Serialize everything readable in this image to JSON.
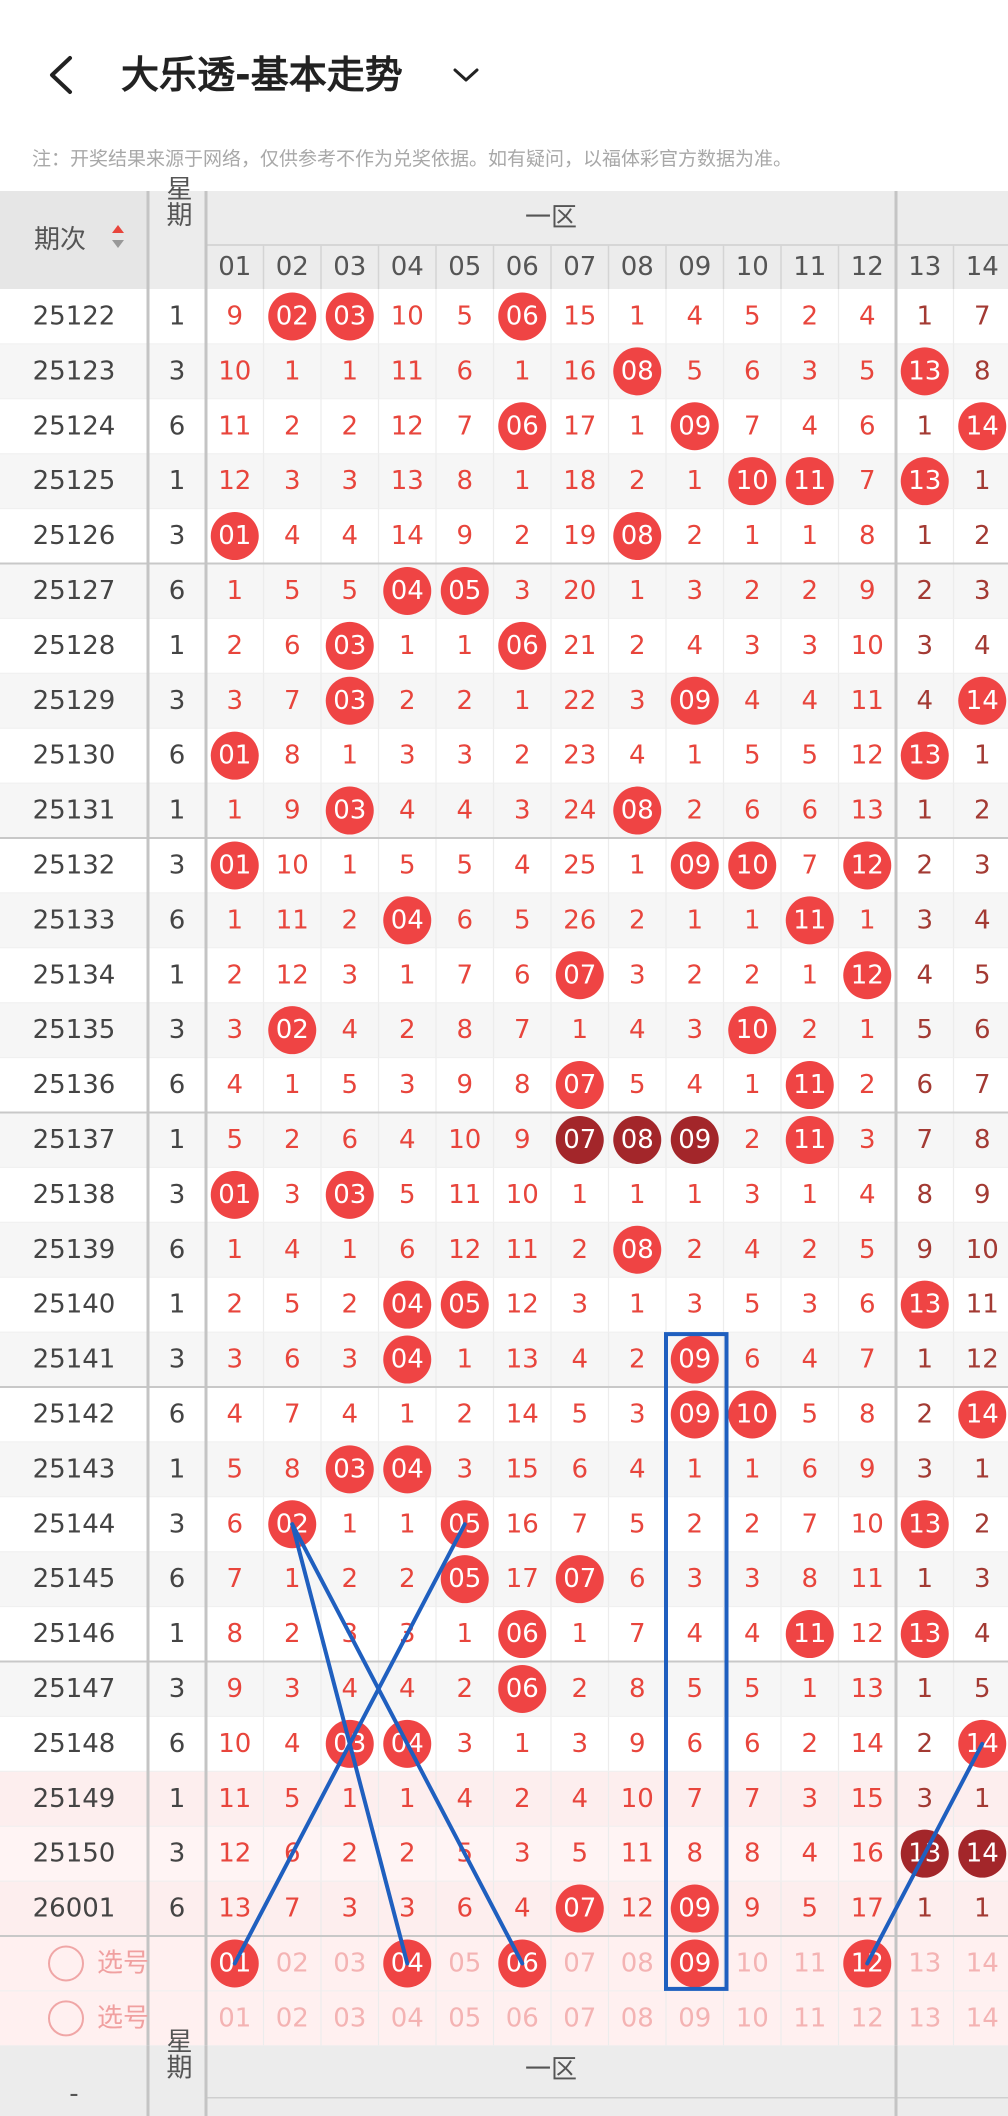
{
  "header": {
    "title": "大乐透-基本走势",
    "note": "注：开奖结果来源于网络，仅供参考不作为兑奖依据。如有疑问，以福体彩官方数据为准。"
  },
  "table": {
    "columns": {
      "issue": "期次",
      "weekday": "星期",
      "zone": "一区",
      "numbers": [
        "01",
        "02",
        "03",
        "04",
        "05",
        "06",
        "07",
        "08",
        "09",
        "10",
        "11",
        "12",
        "13",
        "14"
      ]
    },
    "rows": [
      {
        "issue": "25122",
        "weekday": "1",
        "cells": [
          "9",
          {
            "text": "02",
            "mark": "hit"
          },
          {
            "text": "03",
            "mark": "hit"
          },
          "10",
          "5",
          {
            "text": "06",
            "mark": "hit"
          },
          "15",
          "1",
          "4",
          "5",
          "2",
          "4",
          "1",
          "7"
        ]
      },
      {
        "issue": "25123",
        "weekday": "3",
        "cells": [
          "10",
          "1",
          "1",
          "11",
          "6",
          "1",
          "16",
          {
            "text": "08",
            "mark": "hit"
          },
          "5",
          "6",
          "3",
          "5",
          {
            "text": "13",
            "mark": "hit"
          },
          "8"
        ]
      },
      {
        "issue": "25124",
        "weekday": "6",
        "cells": [
          "11",
          "2",
          "2",
          "12",
          "7",
          {
            "text": "06",
            "mark": "hit"
          },
          "17",
          "1",
          {
            "text": "09",
            "mark": "hit"
          },
          "7",
          "4",
          "6",
          "1",
          {
            "text": "14",
            "mark": "hit"
          }
        ]
      },
      {
        "issue": "25125",
        "weekday": "1",
        "cells": [
          "12",
          "3",
          "3",
          "13",
          "8",
          "1",
          "18",
          "2",
          "1",
          {
            "text": "10",
            "mark": "hit"
          },
          {
            "text": "11",
            "mark": "hit"
          },
          "7",
          {
            "text": "13",
            "mark": "hit"
          },
          "1"
        ]
      },
      {
        "issue": "25126",
        "weekday": "3",
        "cells": [
          {
            "text": "01",
            "mark": "hit"
          },
          "4",
          "4",
          "14",
          "9",
          "2",
          "19",
          {
            "text": "08",
            "mark": "hit"
          },
          "2",
          "1",
          "1",
          "8",
          "1",
          "2"
        ]
      },
      {
        "issue": "25127",
        "weekday": "6",
        "cells": [
          "1",
          "5",
          "5",
          {
            "text": "04",
            "mark": "hit"
          },
          {
            "text": "05",
            "mark": "hit"
          },
          "3",
          "20",
          "1",
          "3",
          "2",
          "2",
          "9",
          "2",
          "3"
        ]
      },
      {
        "issue": "25128",
        "weekday": "1",
        "cells": [
          "2",
          "6",
          {
            "text": "03",
            "mark": "hit"
          },
          "1",
          "1",
          {
            "text": "06",
            "mark": "hit"
          },
          "21",
          "2",
          "4",
          "3",
          "3",
          "10",
          "3",
          "4"
        ]
      },
      {
        "issue": "25129",
        "weekday": "3",
        "cells": [
          "3",
          "7",
          {
            "text": "03",
            "mark": "hit"
          },
          "2",
          "2",
          "1",
          "22",
          "3",
          {
            "text": "09",
            "mark": "hit"
          },
          "4",
          "4",
          "11",
          "4",
          {
            "text": "14",
            "mark": "hit"
          }
        ]
      },
      {
        "issue": "25130",
        "weekday": "6",
        "cells": [
          {
            "text": "01",
            "mark": "hit"
          },
          "8",
          "1",
          "3",
          "3",
          "2",
          "23",
          "4",
          "1",
          "5",
          "5",
          "12",
          {
            "text": "13",
            "mark": "hit"
          },
          "1"
        ]
      },
      {
        "issue": "25131",
        "weekday": "1",
        "cells": [
          "1",
          "9",
          {
            "text": "03",
            "mark": "hit"
          },
          "4",
          "4",
          "3",
          "24",
          {
            "text": "08",
            "mark": "hit"
          },
          "2",
          "6",
          "6",
          "13",
          "1",
          "2"
        ]
      },
      {
        "issue": "25132",
        "weekday": "3",
        "cells": [
          {
            "text": "01",
            "mark": "hit"
          },
          "10",
          "1",
          "5",
          "5",
          "4",
          "25",
          "1",
          {
            "text": "09",
            "mark": "hit"
          },
          {
            "text": "10",
            "mark": "hit"
          },
          "7",
          {
            "text": "12",
            "mark": "hit"
          },
          "2",
          "3"
        ]
      },
      {
        "issue": "25133",
        "weekday": "6",
        "cells": [
          "1",
          "11",
          "2",
          {
            "text": "04",
            "mark": "hit"
          },
          "6",
          "5",
          "26",
          "2",
          "1",
          "1",
          {
            "text": "11",
            "mark": "hit"
          },
          "1",
          "3",
          "4"
        ]
      },
      {
        "issue": "25134",
        "weekday": "1",
        "cells": [
          "2",
          "12",
          "3",
          "1",
          "7",
          "6",
          {
            "text": "07",
            "mark": "hit"
          },
          "3",
          "2",
          "2",
          "1",
          {
            "text": "12",
            "mark": "hit"
          },
          "4",
          "5"
        ]
      },
      {
        "issue": "25135",
        "weekday": "3",
        "cells": [
          "3",
          {
            "text": "02",
            "mark": "hit"
          },
          "4",
          "2",
          "8",
          "7",
          "1",
          "4",
          "3",
          {
            "text": "10",
            "mark": "hit"
          },
          "2",
          "1",
          "5",
          "6"
        ]
      },
      {
        "issue": "25136",
        "weekday": "6",
        "cells": [
          "4",
          "1",
          "5",
          "3",
          "9",
          "8",
          {
            "text": "07",
            "mark": "hit"
          },
          "5",
          "4",
          "1",
          {
            "text": "11",
            "mark": "hit"
          },
          "2",
          "6",
          "7"
        ]
      },
      {
        "issue": "25137",
        "weekday": "1",
        "cells": [
          "5",
          "2",
          "6",
          "4",
          "10",
          "9",
          {
            "text": "07",
            "mark": "dark"
          },
          {
            "text": "08",
            "mark": "dark"
          },
          {
            "text": "09",
            "mark": "dark"
          },
          "2",
          {
            "text": "11",
            "mark": "hit"
          },
          "3",
          "7",
          "8"
        ]
      },
      {
        "issue": "25138",
        "weekday": "3",
        "cells": [
          {
            "text": "01",
            "mark": "hit"
          },
          "3",
          {
            "text": "03",
            "mark": "hit"
          },
          "5",
          "11",
          "10",
          "1",
          "1",
          "1",
          "3",
          "1",
          "4",
          "8",
          "9"
        ]
      },
      {
        "issue": "25139",
        "weekday": "6",
        "cells": [
          "1",
          "4",
          "1",
          "6",
          "12",
          "11",
          "2",
          {
            "text": "08",
            "mark": "hit"
          },
          "2",
          "4",
          "2",
          "5",
          "9",
          "10"
        ]
      },
      {
        "issue": "25140",
        "weekday": "1",
        "cells": [
          "2",
          "5",
          "2",
          {
            "text": "04",
            "mark": "hit"
          },
          {
            "text": "05",
            "mark": "hit"
          },
          "12",
          "3",
          "1",
          "3",
          "5",
          "3",
          "6",
          {
            "text": "13",
            "mark": "hit"
          },
          "11"
        ]
      },
      {
        "issue": "25141",
        "weekday": "3",
        "cells": [
          "3",
          "6",
          "3",
          {
            "text": "04",
            "mark": "hit"
          },
          "1",
          "13",
          "4",
          "2",
          {
            "text": "09",
            "mark": "hit"
          },
          "6",
          "4",
          "7",
          "1",
          "12"
        ]
      },
      {
        "issue": "25142",
        "weekday": "6",
        "cells": [
          "4",
          "7",
          "4",
          "1",
          "2",
          "14",
          "5",
          "3",
          {
            "text": "09",
            "mark": "hit"
          },
          {
            "text": "10",
            "mark": "hit"
          },
          "5",
          "8",
          "2",
          {
            "text": "14",
            "mark": "hit"
          }
        ]
      },
      {
        "issue": "25143",
        "weekday": "1",
        "cells": [
          "5",
          "8",
          {
            "text": "03",
            "mark": "hit"
          },
          {
            "text": "04",
            "mark": "hit"
          },
          "3",
          "15",
          "6",
          "4",
          "1",
          "1",
          "6",
          "9",
          "3",
          "1"
        ]
      },
      {
        "issue": "25144",
        "weekday": "3",
        "cells": [
          "6",
          {
            "text": "02",
            "mark": "hit"
          },
          "1",
          "1",
          {
            "text": "05",
            "mark": "hit"
          },
          "16",
          "7",
          "5",
          "2",
          "2",
          "7",
          "10",
          {
            "text": "13",
            "mark": "hit"
          },
          "2"
        ]
      },
      {
        "issue": "25145",
        "weekday": "6",
        "cells": [
          "7",
          "1",
          "2",
          "2",
          {
            "text": "05",
            "mark": "hit"
          },
          "17",
          {
            "text": "07",
            "mark": "hit"
          },
          "6",
          "3",
          "3",
          "8",
          "11",
          "1",
          "3"
        ]
      },
      {
        "issue": "25146",
        "weekday": "1",
        "cells": [
          "8",
          "2",
          "3",
          "3",
          "1",
          {
            "text": "06",
            "mark": "hit"
          },
          "1",
          "7",
          "4",
          "4",
          {
            "text": "11",
            "mark": "hit"
          },
          "12",
          {
            "text": "13",
            "mark": "hit"
          },
          "4"
        ]
      },
      {
        "issue": "25147",
        "weekday": "3",
        "cells": [
          "9",
          "3",
          "4",
          "4",
          "2",
          {
            "text": "06",
            "mark": "hit"
          },
          "2",
          "8",
          "5",
          "5",
          "1",
          "13",
          "1",
          "5"
        ]
      },
      {
        "issue": "25148",
        "weekday": "6",
        "cells": [
          "10",
          "4",
          {
            "text": "03",
            "mark": "hit"
          },
          {
            "text": "04",
            "mark": "hit"
          },
          "3",
          "1",
          "3",
          "9",
          "6",
          "6",
          "2",
          "14",
          "2",
          {
            "text": "14",
            "mark": "hit"
          }
        ]
      },
      {
        "issue": "25149",
        "weekday": "1",
        "cells": [
          "11",
          "5",
          "1",
          "1",
          "4",
          "2",
          "4",
          "10",
          "7",
          "7",
          "3",
          "15",
          "3",
          "1"
        ]
      },
      {
        "issue": "25150",
        "weekday": "3",
        "cells": [
          "12",
          "6",
          "2",
          "2",
          "5",
          "3",
          "5",
          "11",
          "8",
          "8",
          "4",
          "16",
          {
            "text": "13",
            "mark": "dark"
          },
          {
            "text": "14",
            "mark": "dark"
          }
        ]
      },
      {
        "issue": "26001",
        "weekday": "6",
        "cells": [
          "13",
          "7",
          "3",
          "3",
          "6",
          "4",
          {
            "text": "07",
            "mark": "hit"
          },
          "12",
          {
            "text": "09",
            "mark": "hit"
          },
          "9",
          "5",
          "17",
          "1",
          "1"
        ]
      }
    ],
    "select_rows": [
      {
        "label": "选号",
        "cells": [
          {
            "text": "01",
            "mark": "hit"
          },
          "02",
          "03",
          {
            "text": "04",
            "mark": "hit"
          },
          "05",
          {
            "text": "06",
            "mark": "hit"
          },
          "07",
          "08",
          {
            "text": "09",
            "mark": "hit"
          },
          "10",
          "11",
          {
            "text": "12",
            "mark": "hit"
          },
          "13",
          "14"
        ]
      },
      {
        "label": "选号",
        "cells": [
          "01",
          "02",
          "03",
          "04",
          "05",
          "06",
          "07",
          "08",
          "09",
          "10",
          "11",
          "12",
          "13",
          "14"
        ]
      }
    ],
    "footer_header": {
      "issue": "-",
      "weekday": "星期",
      "zone": "一区"
    }
  }
}
